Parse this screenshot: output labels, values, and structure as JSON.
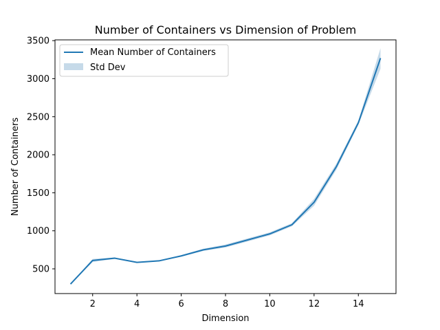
{
  "chart_data": {
    "type": "line",
    "title": "Number of Containers vs Dimension of Problem",
    "xlabel": "Dimension",
    "ylabel": "Number of Containers",
    "xlim": [
      0.3,
      15.7
    ],
    "ylim": [
      175,
      3510
    ],
    "xticks": [
      2,
      4,
      6,
      8,
      10,
      12,
      14
    ],
    "yticks": [
      500,
      1000,
      1500,
      2000,
      2500,
      3000,
      3500
    ],
    "grid": false,
    "legend_position": "top-left",
    "x": [
      1,
      2,
      3,
      4,
      5,
      6,
      7,
      8,
      9,
      10,
      11,
      12,
      13,
      14,
      15
    ],
    "series": [
      {
        "name": "Mean Number of Containers",
        "kind": "line",
        "color": "#1f77b4",
        "values": [
          300,
          610,
          640,
          585,
          605,
          670,
          750,
          800,
          880,
          960,
          1080,
          1375,
          1840,
          2420,
          3270
        ]
      },
      {
        "name": "Std Dev",
        "kind": "band",
        "color": "#aecbe0",
        "lower": [
          295,
          590,
          630,
          578,
          597,
          660,
          735,
          780,
          860,
          940,
          1060,
          1330,
          1800,
          2390,
          3130
        ],
        "upper": [
          305,
          630,
          650,
          592,
          613,
          680,
          765,
          820,
          900,
          980,
          1100,
          1420,
          1880,
          2450,
          3400
        ]
      }
    ]
  }
}
